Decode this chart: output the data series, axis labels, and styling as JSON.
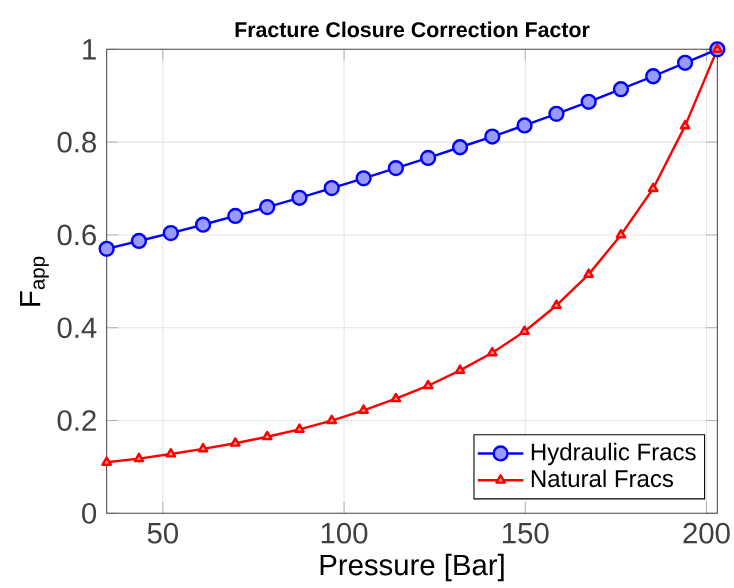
{
  "chart_data": {
    "type": "line",
    "title": "Fracture Closure Correction Factor",
    "xlabel": "Pressure [Bar]",
    "ylabel": "F$_{app}$",
    "x": [
      34.5,
      43.4,
      52.2,
      61.1,
      70.0,
      78.8,
      87.7,
      96.6,
      105.4,
      114.3,
      123.2,
      132.0,
      140.9,
      149.8,
      158.6,
      167.5,
      176.4,
      185.3,
      194.1,
      203
    ],
    "series": [
      {
        "name": "Hydraulic Fracs",
        "color": "#0000ff",
        "marker": "circle",
        "values": [
          0.57,
          0.587,
          0.604,
          0.622,
          0.641,
          0.66,
          0.68,
          0.701,
          0.722,
          0.744,
          0.766,
          0.789,
          0.812,
          0.836,
          0.861,
          0.887,
          0.914,
          0.942,
          0.971,
          1.0
        ]
      },
      {
        "name": "Natural Fracs",
        "color": "#ff0000",
        "marker": "triangle",
        "values": [
          0.11,
          0.118,
          0.128,
          0.139,
          0.151,
          0.165,
          0.181,
          0.2,
          0.222,
          0.247,
          0.275,
          0.308,
          0.346,
          0.392,
          0.448,
          0.515,
          0.6,
          0.7,
          0.835,
          1.0
        ]
      }
    ],
    "xlim": [
      34.5,
      203
    ],
    "ylim": [
      0,
      1
    ],
    "xticks": [
      50,
      100,
      150,
      200
    ],
    "yticks": [
      0,
      0.2,
      0.4,
      0.6,
      0.8,
      1
    ],
    "grid": true,
    "legend": "bottom right"
  }
}
